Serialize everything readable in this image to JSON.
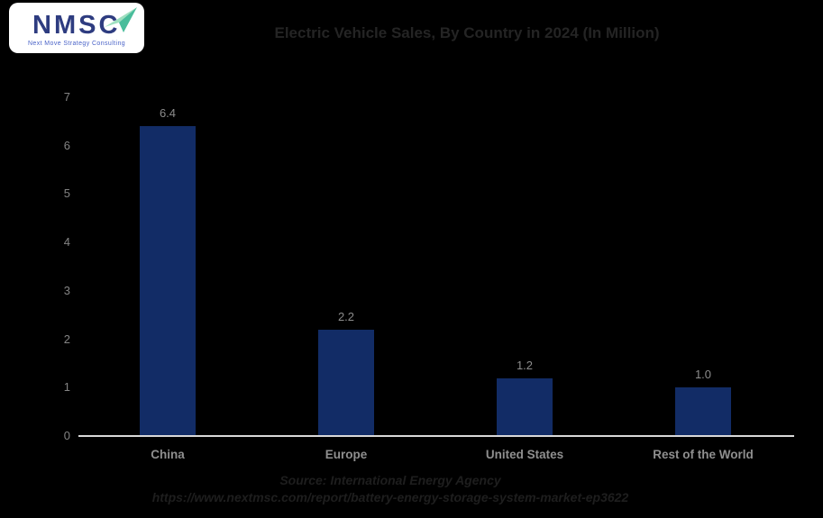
{
  "logo": {
    "acronym": "NMSC",
    "tagline": "Next Move Strategy Consulting"
  },
  "source": {
    "line1": "Source: International Energy Agency",
    "line2": "https://www.nextmsc.com/report/battery-energy-storage-system-market-ep3622"
  },
  "colors": {
    "background": "#000000",
    "bar": "#122c66",
    "title_text": "#242424",
    "axis_text": "#848484",
    "data_label_text": "#8c8c8c",
    "axis_line": "#d9d9d9",
    "source_text": "#1e1e1e",
    "logo_background": "#ffffff",
    "logo_navy": "#2e3c80",
    "logo_tagline_blue": "#4a63c8",
    "logo_arrow_light": "#9fe0c0",
    "logo_arrow_dark": "#49bd9b"
  },
  "chart_data": {
    "type": "bar",
    "title": "Electric Vehicle Sales, By Country in 2024 (In Million)",
    "categories": [
      "China",
      "Europe",
      "United States",
      "Rest of the World"
    ],
    "values": [
      6.4,
      2.2,
      1.2,
      1.0
    ],
    "data_labels": [
      "6.4",
      "2.2",
      "1.2",
      "1.0"
    ],
    "xlabel": "",
    "ylabel": "",
    "ylim": [
      0,
      7
    ],
    "yticks": [
      7,
      6,
      5,
      4,
      3,
      2,
      1,
      0
    ],
    "grid": false,
    "legend": false,
    "background": "black",
    "bar_color": "#122c66"
  }
}
